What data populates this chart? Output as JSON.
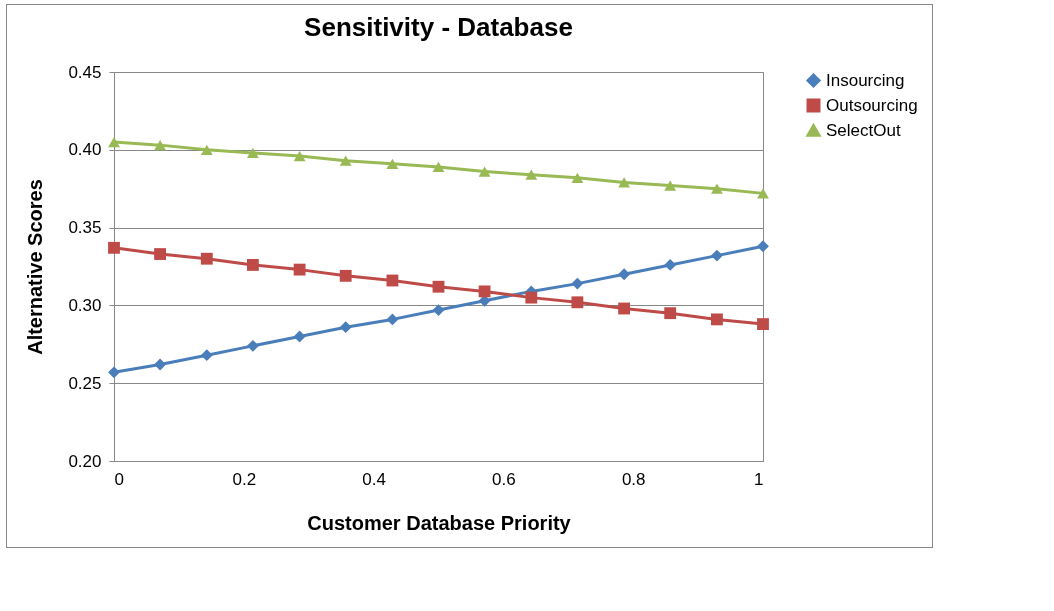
{
  "chart_data": {
    "type": "line",
    "title": "Sensitivity - Database",
    "xlabel": "Customer Database Priority",
    "ylabel": "Alternative Scores",
    "x": [
      0,
      0.071,
      0.143,
      0.214,
      0.286,
      0.357,
      0.429,
      0.5,
      0.571,
      0.643,
      0.714,
      0.786,
      0.857,
      0.929,
      1
    ],
    "xlim": [
      0,
      1
    ],
    "xticks": [
      0,
      0.2,
      0.4,
      0.6,
      0.8,
      1
    ],
    "ylim": [
      0.2,
      0.45
    ],
    "yticks": [
      {
        "value": 0.2,
        "label": "0.20"
      },
      {
        "value": 0.25,
        "label": "0.25"
      },
      {
        "value": 0.3,
        "label": "0.30"
      },
      {
        "value": 0.35,
        "label": "0.35"
      },
      {
        "value": 0.4,
        "label": "0.40"
      },
      {
        "value": 0.45,
        "label": "0.45"
      }
    ],
    "grid": "y",
    "legend": "right",
    "line_style": "solid",
    "series": [
      {
        "name": "Insourcing",
        "color": "#4a7ebb",
        "marker": "diamond",
        "values": [
          0.257,
          0.262,
          0.268,
          0.274,
          0.28,
          0.286,
          0.291,
          0.297,
          0.303,
          0.309,
          0.314,
          0.32,
          0.326,
          0.332,
          0.338
        ]
      },
      {
        "name": "Outsourcing",
        "color": "#be4b48",
        "marker": "square",
        "values": [
          0.337,
          0.333,
          0.33,
          0.326,
          0.323,
          0.319,
          0.316,
          0.312,
          0.309,
          0.305,
          0.302,
          0.298,
          0.295,
          0.291,
          0.288
        ]
      },
      {
        "name": "SelectOut",
        "color": "#98b954",
        "marker": "triangle",
        "values": [
          0.405,
          0.403,
          0.4,
          0.398,
          0.396,
          0.393,
          0.391,
          0.389,
          0.386,
          0.384,
          0.382,
          0.379,
          0.377,
          0.375,
          0.372
        ]
      }
    ]
  }
}
